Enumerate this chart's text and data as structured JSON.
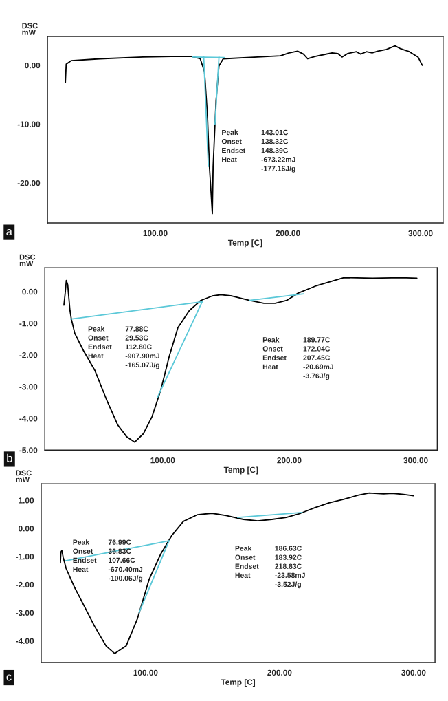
{
  "chart_data": [
    {
      "type": "line",
      "ylabel": "DSC\nmW",
      "xlabel": "Temp [C]",
      "xlim": [
        18.7,
        317
      ],
      "ylim": [
        -26.8,
        4.9
      ],
      "xticks": [
        {
          "value": 100,
          "label": "100.00"
        },
        {
          "value": 200,
          "label": "200.00"
        },
        {
          "value": 300,
          "label": "300.00"
        }
      ],
      "yticks": [
        {
          "value": -20,
          "label": "-20.00"
        },
        {
          "value": -10,
          "label": "-10.00"
        },
        {
          "value": 0,
          "label": "0.00"
        }
      ],
      "series": [
        {
          "color": "#000000",
          "x": [
            32.2,
            32.8,
            36.7,
            58.3,
            90.7,
            112.3,
            127.4,
            133.9,
            137.1,
            139.3,
            140.8,
            143.0,
            143.6,
            145.8,
            148.0,
            151.2,
            177.1,
            194.4,
            200.9,
            207.3,
            211.7,
            214.9,
            220.3,
            226.8,
            233.3,
            237.6,
            240.8,
            245.1,
            251.6,
            254.9,
            259.2,
            263.5,
            267.8,
            274.3,
            280.8,
            285.1,
            291.6,
            298.1,
            301.3
          ],
          "values": [
            -2.9,
            0.2,
            0.8,
            1.1,
            1.4,
            1.5,
            1.5,
            1.1,
            -1.1,
            -8.4,
            -17.2,
            -25.2,
            -17.2,
            -6.0,
            -0.1,
            1.1,
            1.4,
            1.6,
            2.1,
            2.4,
            1.9,
            1.1,
            1.5,
            1.8,
            2.1,
            2.0,
            1.4,
            2.0,
            2.3,
            1.9,
            2.3,
            2.1,
            2.4,
            2.7,
            3.3,
            2.8,
            2.3,
            1.4,
            0.0
          ]
        },
        {
          "color": "#5bc8d8",
          "x": [
            128,
            152
          ],
          "values": [
            1.4,
            1.3
          ]
        },
        {
          "color": "#5bc8d8",
          "x": [
            136.5,
            140
          ],
          "values": [
            1.5,
            -17.2
          ]
        },
        {
          "color": "#5bc8d8",
          "x": [
            148.0,
            145
          ],
          "values": [
            1.4,
            -10
          ]
        }
      ],
      "annotations": [
        "Peak\nOnset\nEndset\nHeat",
        "143.01C\n138.32C\n148.39C\n-673.22mJ\n-177.16J/g",
        "a"
      ]
    },
    {
      "type": "line",
      "ylabel": "DSC\nmW",
      "xlabel": "Temp [C]",
      "xlim": [
        6.8,
        317
      ],
      "ylim": [
        -5.0,
        0.75
      ],
      "xticks": [
        {
          "value": 100,
          "label": "100.00"
        },
        {
          "value": 200,
          "label": "200.00"
        },
        {
          "value": 300,
          "label": "300.00"
        }
      ],
      "yticks": [
        {
          "value": -5,
          "label": "-5.00"
        },
        {
          "value": -4,
          "label": "-4.00"
        },
        {
          "value": -3,
          "label": "-3.00"
        },
        {
          "value": -2,
          "label": "-2.00"
        },
        {
          "value": -1,
          "label": "-1.00"
        },
        {
          "value": 0,
          "label": "0.00"
        }
      ],
      "series": [
        {
          "color": "#000000",
          "x": [
            21.9,
            22.9,
            23.8,
            24.9,
            26.7,
            27.8,
            30.5,
            37.3,
            46.4,
            55.4,
            64.5,
            71.3,
            77.9,
            84.8,
            91.6,
            98.4,
            105.2,
            112.0,
            121.0,
            130.1,
            139.1,
            145.9,
            154.9,
            168.6,
            179.9,
            188.9,
            198.0,
            207.0,
            220.6,
            243.2,
            265.8,
            288.5,
            300.9
          ],
          "values": [
            -0.43,
            -0.05,
            0.35,
            0.22,
            -0.6,
            -0.87,
            -1.32,
            -1.86,
            -2.49,
            -3.39,
            -4.21,
            -4.57,
            -4.75,
            -4.48,
            -3.94,
            -3.12,
            -2.04,
            -1.14,
            -0.6,
            -0.28,
            -0.14,
            -0.1,
            -0.14,
            -0.28,
            -0.37,
            -0.37,
            -0.28,
            -0.05,
            0.17,
            0.44,
            0.42,
            0.44,
            0.42
          ]
        },
        {
          "color": "#5bc8d8",
          "x": [
            27.2,
            131.2
          ],
          "values": [
            -0.87,
            -0.32
          ]
        },
        {
          "color": "#5bc8d8",
          "x": [
            95.7,
            131.2
          ],
          "values": [
            -3.35,
            -0.32
          ]
        },
        {
          "color": "#5bc8d8",
          "x": [
            168.6,
            211.5
          ],
          "values": [
            -0.28,
            -0.07
          ]
        }
      ],
      "annotations": [
        "Peak\nOnset\nEndset\nHeat",
        "77.88C\n29.53C\n112.80C\n-907.90mJ\n-165.07J/g",
        "Peak\nOnset\nEndset\nHeat",
        "189.77C\n172.04C\n207.45C\n-20.69mJ\n-3.76J/g",
        "b"
      ]
    },
    {
      "type": "line",
      "ylabel": "DSC\nmW",
      "xlabel": "Temp [C]",
      "xlim": [
        22.1,
        316
      ],
      "ylim": [
        -4.77,
        1.59
      ],
      "xticks": [
        {
          "value": 100,
          "label": "100.00"
        },
        {
          "value": 200,
          "label": "200.00"
        },
        {
          "value": 300,
          "label": "300.00"
        }
      ],
      "yticks": [
        {
          "value": -4,
          "label": "-4.00"
        },
        {
          "value": -3,
          "label": "-3.00"
        },
        {
          "value": -2,
          "label": "-2.00"
        },
        {
          "value": -1,
          "label": "-1.00"
        },
        {
          "value": 0,
          "label": "0.00"
        },
        {
          "value": 1,
          "label": "1.00"
        }
      ],
      "series": [
        {
          "color": "#000000",
          "x": [
            36.4,
            36.8,
            37.5,
            38.5,
            40.7,
            47.1,
            53.5,
            62.0,
            70.5,
            76.9,
            85.5,
            94.0,
            102.6,
            111.1,
            119.6,
            128.2,
            138.8,
            149.5,
            160.2,
            173.0,
            183.7,
            194.3,
            205.0,
            215.7,
            226.4,
            237.0,
            247.7,
            258.4,
            266.9,
            277.6,
            284.0,
            292.5,
            300.0
          ],
          "values": [
            -1.23,
            -0.84,
            -0.79,
            -1.03,
            -1.43,
            -2.11,
            -2.7,
            -3.49,
            -4.18,
            -4.45,
            -4.18,
            -3.2,
            -1.82,
            -0.93,
            -0.25,
            0.25,
            0.49,
            0.54,
            0.46,
            0.32,
            0.27,
            0.32,
            0.39,
            0.54,
            0.74,
            0.91,
            1.03,
            1.18,
            1.26,
            1.23,
            1.25,
            1.21,
            1.16
          ]
        },
        {
          "color": "#5bc8d8",
          "x": [
            40.2,
            117.5
          ],
          "values": [
            -1.15,
            -0.44
          ]
        },
        {
          "color": "#5bc8d8",
          "x": [
            95.1,
            117.5
          ],
          "values": [
            -3.0,
            -0.44
          ]
        },
        {
          "color": "#5bc8d8",
          "x": [
            168.7,
            216.8
          ],
          "values": [
            0.39,
            0.57
          ]
        }
      ],
      "annotations": [
        "Peak\nOnset\nEndset\nHeat",
        "76.99C\n36.83C\n107.66C\n-670.40mJ\n-100.06J/g",
        "Peak\nOnset\nEndset\nHeat",
        "186.63C\n183.92C\n218.83C\n-23.58mJ\n-3.52J/g",
        "c"
      ]
    }
  ]
}
